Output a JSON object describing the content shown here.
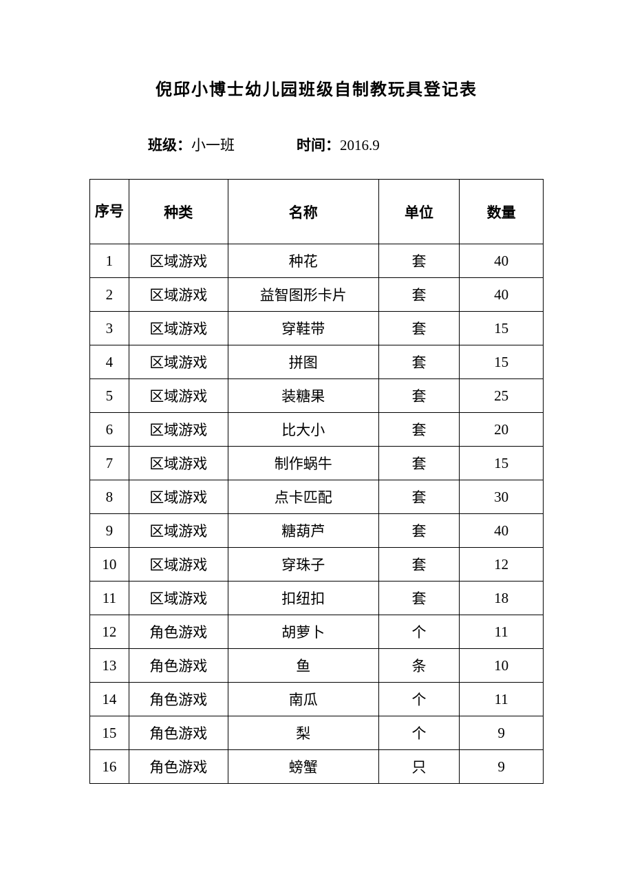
{
  "title": "倪邱小博士幼儿园班级自制教玩具登记表",
  "meta": {
    "class_label": "班级：",
    "class_value": "小一班",
    "time_label": "时间：",
    "time_value": "2016.9"
  },
  "table": {
    "headers": {
      "seq": "序号",
      "type": "种类",
      "name": "名称",
      "unit": "单位",
      "qty": "数量"
    },
    "rows": [
      {
        "seq": "1",
        "type": "区域游戏",
        "name": "种花",
        "unit": "套",
        "qty": "40"
      },
      {
        "seq": "2",
        "type": "区域游戏",
        "name": "益智图形卡片",
        "unit": "套",
        "qty": "40"
      },
      {
        "seq": "3",
        "type": "区域游戏",
        "name": "穿鞋带",
        "unit": "套",
        "qty": "15"
      },
      {
        "seq": "4",
        "type": "区域游戏",
        "name": "拼图",
        "unit": "套",
        "qty": "15"
      },
      {
        "seq": "5",
        "type": "区域游戏",
        "name": "装糖果",
        "unit": "套",
        "qty": "25"
      },
      {
        "seq": "6",
        "type": "区域游戏",
        "name": "比大小",
        "unit": "套",
        "qty": "20"
      },
      {
        "seq": "7",
        "type": "区域游戏",
        "name": "制作蜗牛",
        "unit": "套",
        "qty": "15"
      },
      {
        "seq": "8",
        "type": "区域游戏",
        "name": "点卡匹配",
        "unit": "套",
        "qty": "30"
      },
      {
        "seq": "9",
        "type": "区域游戏",
        "name": "糖葫芦",
        "unit": "套",
        "qty": "40"
      },
      {
        "seq": "10",
        "type": "区域游戏",
        "name": "穿珠子",
        "unit": "套",
        "qty": "12"
      },
      {
        "seq": "11",
        "type": "区域游戏",
        "name": "扣纽扣",
        "unit": "套",
        "qty": "18"
      },
      {
        "seq": "12",
        "type": "角色游戏",
        "name": "胡萝卜",
        "unit": "个",
        "qty": "11"
      },
      {
        "seq": "13",
        "type": "角色游戏",
        "name": "鱼",
        "unit": "条",
        "qty": "10"
      },
      {
        "seq": "14",
        "type": "角色游戏",
        "name": "南瓜",
        "unit": "个",
        "qty": "11"
      },
      {
        "seq": "15",
        "type": "角色游戏",
        "name": "梨",
        "unit": "个",
        "qty": "9"
      },
      {
        "seq": "16",
        "type": "角色游戏",
        "name": "螃蟹",
        "unit": "只",
        "qty": "9"
      }
    ]
  }
}
